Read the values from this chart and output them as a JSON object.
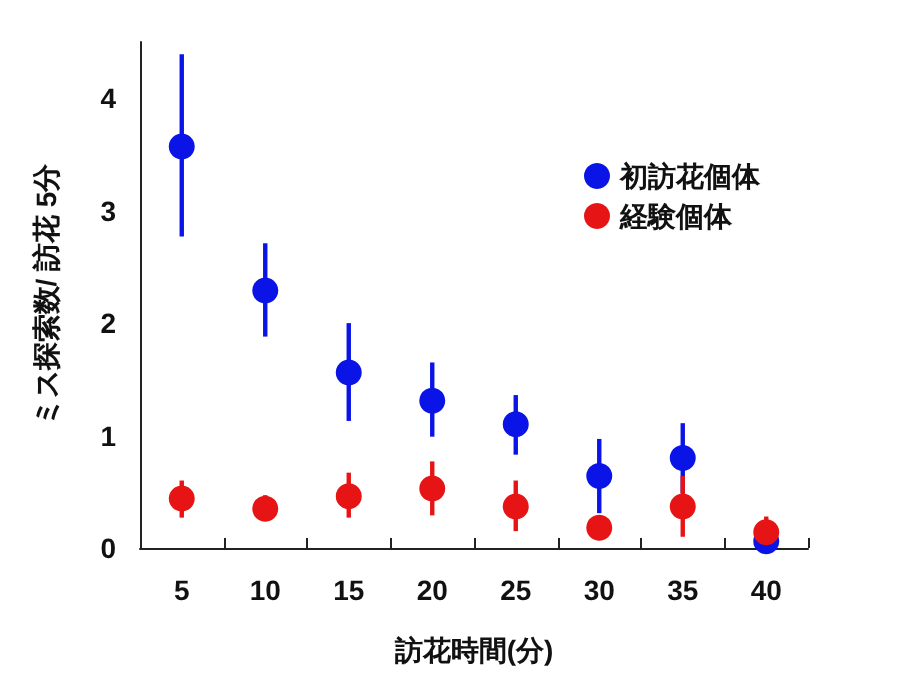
{
  "chart_data": {
    "type": "scatter",
    "xlabel": "訪花時間(分)",
    "ylabel": "ミス探索数/ 訪花 5分",
    "categories": [
      "5",
      "10",
      "15",
      "20",
      "25",
      "30",
      "35",
      "40"
    ],
    "ylim": [
      0,
      4.5
    ],
    "yticks": [
      0,
      1,
      2,
      3,
      4
    ],
    "grid": false,
    "legend": "top right",
    "marker": "circle",
    "series": [
      {
        "name": "初訪花個体",
        "color": "#0a14e6",
        "values": [
          3.57,
          2.29,
          1.56,
          1.31,
          1.1,
          0.64,
          0.8,
          0.06
        ],
        "errors": [
          [
            2.77,
            4.39
          ],
          [
            1.88,
            2.71
          ],
          [
            1.13,
            2.0
          ],
          [
            0.99,
            1.65
          ],
          [
            0.83,
            1.36
          ],
          [
            0.31,
            0.97
          ],
          [
            0.49,
            1.11
          ],
          null
        ]
      },
      {
        "name": "経験個体",
        "color": "#e61414",
        "values": [
          0.44,
          0.35,
          0.46,
          0.53,
          0.37,
          0.18,
          0.37,
          0.14
        ],
        "errors": [
          [
            0.27,
            0.6
          ],
          [
            0.24,
            0.47
          ],
          [
            0.27,
            0.67
          ],
          [
            0.29,
            0.77
          ],
          [
            0.15,
            0.6
          ],
          [
            0.07,
            0.25
          ],
          [
            0.1,
            0.64
          ],
          [
            0.02,
            0.28
          ]
        ]
      }
    ]
  }
}
